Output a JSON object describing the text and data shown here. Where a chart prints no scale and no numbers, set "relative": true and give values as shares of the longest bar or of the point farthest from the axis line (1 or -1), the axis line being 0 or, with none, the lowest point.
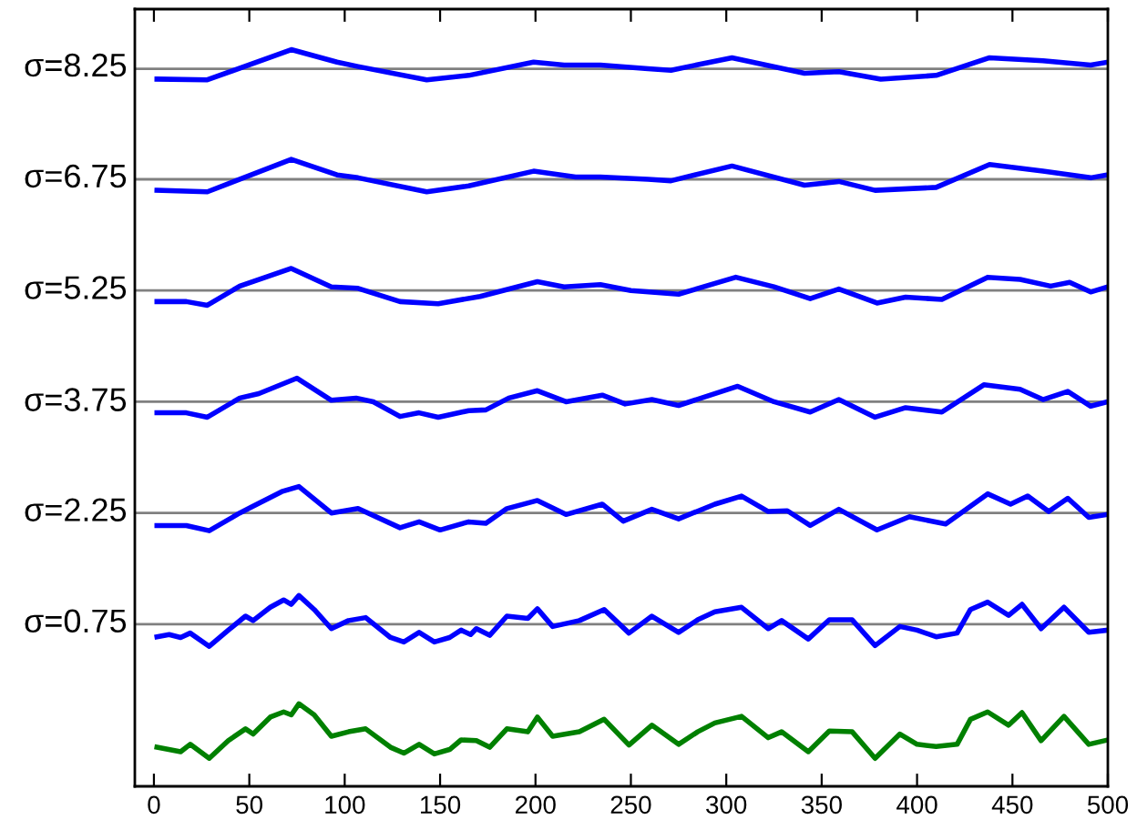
{
  "chart_data": {
    "type": "line",
    "relative": true,
    "xlim": [
      -10,
      500
    ],
    "xticks": [
      0,
      50,
      100,
      150,
      200,
      250,
      300,
      350,
      400,
      450,
      500
    ],
    "marker": "none",
    "line_style": "solid",
    "ref_lines": [
      {
        "axis": "y",
        "value": 0.22,
        "color": "#808080"
      },
      {
        "axis": "y",
        "value": 0.371,
        "color": "#808080"
      },
      {
        "axis": "y",
        "value": 0.522,
        "color": "#808080"
      },
      {
        "axis": "y",
        "value": 0.673,
        "color": "#808080"
      },
      {
        "axis": "y",
        "value": 0.824,
        "color": "#808080"
      },
      {
        "axis": "y",
        "value": 0.974,
        "color": "#808080"
      }
    ],
    "series": [
      {
        "name": "σ=8.25",
        "color": "#0000ff",
        "x": [
          1.6,
          28,
          72,
          96,
          107,
          143,
          165,
          199,
          215,
          234,
          259,
          271,
          303,
          341,
          359,
          381,
          410,
          438,
          466,
          491,
          500
        ],
        "values": [
          0.96,
          0.959,
          1.0,
          0.983,
          0.977,
          0.959,
          0.965,
          0.983,
          0.979,
          0.979,
          0.974,
          0.972,
          0.989,
          0.968,
          0.97,
          0.96,
          0.965,
          0.989,
          0.985,
          0.979,
          0.983
        ]
      },
      {
        "name": "σ=6.75",
        "color": "#0000ff",
        "x": [
          1.6,
          28,
          72,
          96,
          107,
          143,
          165,
          199,
          221,
          234,
          259,
          271,
          303,
          341,
          359,
          378,
          410,
          438,
          466,
          491,
          500
        ],
        "values": [
          0.809,
          0.807,
          0.851,
          0.83,
          0.826,
          0.807,
          0.815,
          0.835,
          0.827,
          0.827,
          0.824,
          0.822,
          0.842,
          0.816,
          0.821,
          0.809,
          0.813,
          0.844,
          0.835,
          0.826,
          0.83
        ]
      },
      {
        "name": "σ=5.25",
        "color": "#0000ff",
        "x": [
          1.6,
          17,
          28,
          45,
          72,
          93,
          107,
          129,
          149,
          171,
          201,
          215,
          234,
          250,
          275,
          305,
          325,
          344,
          359,
          379,
          394,
          413,
          437,
          454,
          470,
          480,
          491,
          500
        ],
        "values": [
          0.658,
          0.658,
          0.653,
          0.679,
          0.703,
          0.678,
          0.676,
          0.658,
          0.655,
          0.665,
          0.685,
          0.678,
          0.681,
          0.673,
          0.668,
          0.691,
          0.678,
          0.662,
          0.675,
          0.656,
          0.664,
          0.661,
          0.691,
          0.688,
          0.679,
          0.684,
          0.671,
          0.678
        ]
      },
      {
        "name": "σ=3.75",
        "color": "#0000ff",
        "x": [
          1.6,
          17,
          28,
          45,
          55,
          75,
          93,
          106,
          115,
          129,
          139,
          149,
          165,
          174,
          186,
          201,
          216,
          235,
          247,
          261,
          275,
          306,
          325,
          344,
          359,
          378,
          394,
          413,
          435,
          454,
          466,
          479,
          491,
          500
        ],
        "values": [
          0.507,
          0.507,
          0.501,
          0.527,
          0.533,
          0.554,
          0.524,
          0.527,
          0.522,
          0.502,
          0.507,
          0.501,
          0.51,
          0.511,
          0.527,
          0.537,
          0.522,
          0.531,
          0.519,
          0.525,
          0.517,
          0.543,
          0.522,
          0.508,
          0.525,
          0.501,
          0.514,
          0.508,
          0.545,
          0.539,
          0.525,
          0.536,
          0.516,
          0.522
        ]
      },
      {
        "name": "σ=2.25",
        "color": "#0000ff",
        "x": [
          1.6,
          17,
          29,
          45,
          51,
          67,
          76,
          93,
          107,
          129,
          139,
          150,
          165,
          174,
          185,
          201,
          216,
          235,
          246,
          261,
          275,
          294,
          308,
          322,
          332,
          344,
          359,
          379,
          396,
          415,
          437,
          449,
          458,
          469,
          479,
          490,
          500
        ],
        "values": [
          0.354,
          0.354,
          0.347,
          0.371,
          0.379,
          0.4,
          0.407,
          0.371,
          0.377,
          0.351,
          0.359,
          0.348,
          0.359,
          0.357,
          0.377,
          0.388,
          0.369,
          0.383,
          0.36,
          0.376,
          0.363,
          0.383,
          0.394,
          0.373,
          0.374,
          0.354,
          0.376,
          0.348,
          0.366,
          0.356,
          0.397,
          0.383,
          0.394,
          0.373,
          0.391,
          0.365,
          0.369
        ]
      },
      {
        "name": "σ=0.75",
        "color": "#0000ff",
        "x": [
          1.6,
          8,
          14,
          19,
          29,
          39,
          48,
          52,
          61,
          68,
          72,
          76,
          84,
          93,
          102,
          111,
          124,
          131,
          139,
          147,
          155,
          161,
          166,
          169,
          176,
          185,
          196,
          201,
          209,
          223,
          236,
          249,
          261,
          275,
          285,
          294,
          308,
          322,
          329,
          343,
          354,
          366,
          378,
          391,
          400,
          410,
          421,
          428,
          437,
          448,
          455,
          465,
          477,
          490,
          500
        ],
        "values": [
          0.203,
          0.206,
          0.202,
          0.208,
          0.19,
          0.212,
          0.231,
          0.225,
          0.243,
          0.253,
          0.247,
          0.259,
          0.24,
          0.214,
          0.225,
          0.229,
          0.202,
          0.196,
          0.209,
          0.196,
          0.202,
          0.212,
          0.206,
          0.214,
          0.205,
          0.231,
          0.228,
          0.241,
          0.217,
          0.225,
          0.24,
          0.208,
          0.231,
          0.209,
          0.226,
          0.237,
          0.243,
          0.214,
          0.225,
          0.2,
          0.226,
          0.226,
          0.191,
          0.217,
          0.212,
          0.203,
          0.208,
          0.24,
          0.25,
          0.232,
          0.247,
          0.214,
          0.243,
          0.209,
          0.212
        ]
      },
      {
        "color": "#008000",
        "x": [
          1.6,
          14,
          19,
          29,
          39,
          48,
          52,
          61,
          68,
          72,
          76,
          84,
          93,
          102,
          111,
          124,
          131,
          139,
          147,
          155,
          161,
          169,
          176,
          185,
          196,
          201,
          209,
          223,
          236,
          249,
          261,
          275,
          285,
          294,
          308,
          322,
          329,
          343,
          354,
          366,
          378,
          391,
          400,
          410,
          421,
          428,
          437,
          448,
          455,
          465,
          477,
          490,
          500
        ],
        "values": [
          0.053,
          0.047,
          0.057,
          0.038,
          0.062,
          0.078,
          0.071,
          0.094,
          0.101,
          0.097,
          0.112,
          0.097,
          0.068,
          0.074,
          0.078,
          0.053,
          0.045,
          0.057,
          0.044,
          0.05,
          0.063,
          0.062,
          0.053,
          0.078,
          0.074,
          0.094,
          0.068,
          0.074,
          0.091,
          0.056,
          0.083,
          0.057,
          0.074,
          0.086,
          0.095,
          0.066,
          0.074,
          0.047,
          0.075,
          0.074,
          0.038,
          0.071,
          0.057,
          0.054,
          0.057,
          0.091,
          0.101,
          0.083,
          0.1,
          0.062,
          0.095,
          0.057,
          0.063
        ]
      }
    ]
  }
}
